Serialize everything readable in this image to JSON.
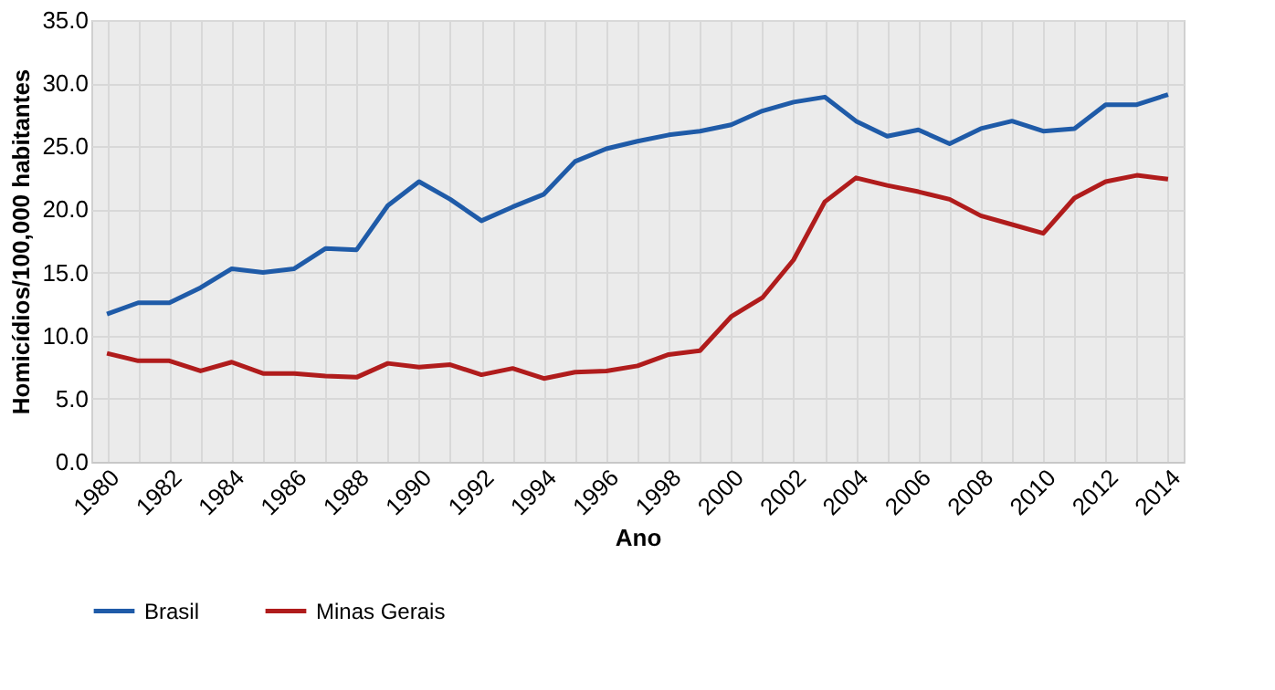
{
  "chart_data": {
    "type": "line",
    "xlabel": "Ano",
    "ylabel": "Homicídios/100,000 habitantes",
    "categories": [
      "1980",
      null,
      "1982",
      null,
      "1984",
      null,
      "1986",
      null,
      "1988",
      null,
      "1990",
      null,
      "1992",
      null,
      "1994",
      null,
      "1996",
      null,
      "1998",
      null,
      "2000",
      null,
      "2002",
      null,
      "2004",
      null,
      "2006",
      null,
      "2008",
      null,
      "2010",
      null,
      "2012",
      null,
      "2014"
    ],
    "series": [
      {
        "name": "Brasil",
        "color": "#1f5ba8",
        "values": [
          11.7,
          12.6,
          12.6,
          13.8,
          15.3,
          15.0,
          15.3,
          16.9,
          16.8,
          20.3,
          22.2,
          20.8,
          19.1,
          20.2,
          21.2,
          23.8,
          24.8,
          25.4,
          25.9,
          26.2,
          26.7,
          27.8,
          28.5,
          28.9,
          27.0,
          25.8,
          26.3,
          25.2,
          26.4,
          27.0,
          26.2,
          26.4,
          28.3,
          28.3,
          29.1
        ]
      },
      {
        "name": "Minas Gerais",
        "color": "#b01c1c",
        "values": [
          8.6,
          8.0,
          8.0,
          7.2,
          7.9,
          7.0,
          7.0,
          6.8,
          6.7,
          7.8,
          7.5,
          7.7,
          6.9,
          7.4,
          6.6,
          7.1,
          7.2,
          7.6,
          8.5,
          8.8,
          11.5,
          13.0,
          16.0,
          20.6,
          22.5,
          21.9,
          21.4,
          20.8,
          19.5,
          18.8,
          18.1,
          20.9,
          22.2,
          22.7,
          22.4
        ]
      }
    ],
    "ylim": [
      0,
      35
    ],
    "yticks": [
      {
        "value": 0,
        "label": "0.0"
      },
      {
        "value": 5,
        "label": "5.0"
      },
      {
        "value": 10,
        "label": "10.0"
      },
      {
        "value": 15,
        "label": "15.0"
      },
      {
        "value": 20,
        "label": "20.0"
      },
      {
        "value": 25,
        "label": "25.0"
      },
      {
        "value": 30,
        "label": "30.0"
      },
      {
        "value": 35,
        "label": "35.0"
      }
    ],
    "grid": true,
    "legend": "bottom",
    "line_style": "solid",
    "marker": "none"
  }
}
